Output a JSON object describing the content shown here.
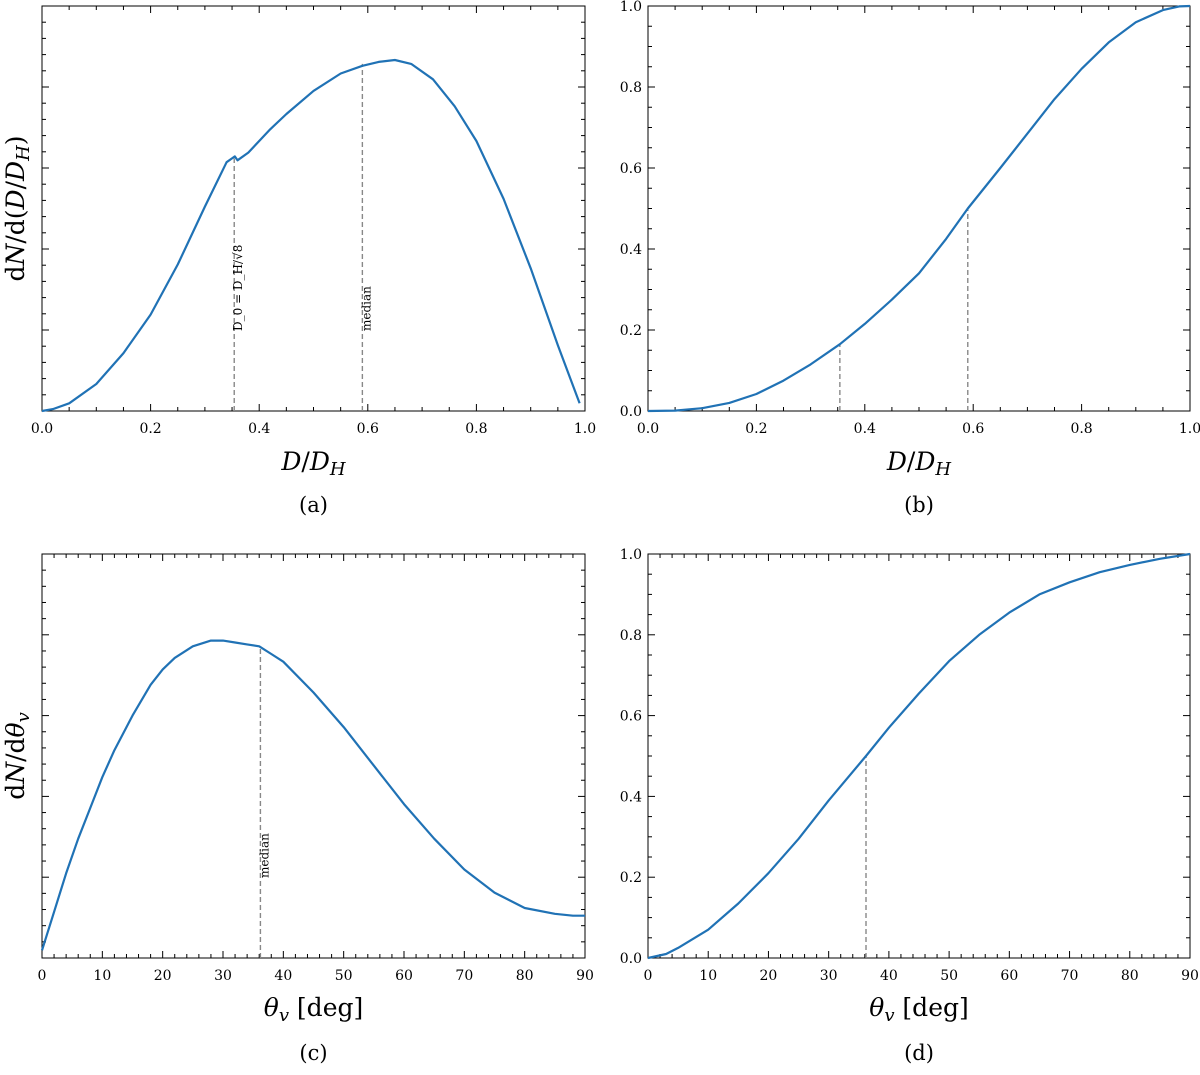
{
  "chart_data": [
    {
      "id": "a",
      "type": "line",
      "caption": "(a)",
      "xlabel": "D/D_H",
      "ylabel": "dN/d(D/D_H)",
      "xlim": [
        0,
        1
      ],
      "ylim": [
        0,
        1.05
      ],
      "xticks": [
        0.0,
        0.2,
        0.4,
        0.6,
        0.8,
        1.0
      ],
      "xtick_labels": [
        "0.0",
        "0.2",
        "0.4",
        "0.6",
        "0.8",
        "1.0"
      ],
      "yticks": [],
      "ytick_labels": [],
      "y_minor_ticks": true,
      "x": [
        0,
        0.02,
        0.05,
        0.1,
        0.15,
        0.2,
        0.25,
        0.3,
        0.34,
        0.35,
        0.355,
        0.36,
        0.38,
        0.4,
        0.42,
        0.45,
        0.5,
        0.55,
        0.59,
        0.62,
        0.65,
        0.68,
        0.72,
        0.76,
        0.8,
        0.85,
        0.9,
        0.95,
        0.99
      ],
      "y": [
        0,
        0.005,
        0.02,
        0.07,
        0.15,
        0.25,
        0.38,
        0.53,
        0.645,
        0.655,
        0.66,
        0.65,
        0.67,
        0.7,
        0.73,
        0.77,
        0.83,
        0.875,
        0.895,
        0.905,
        0.91,
        0.9,
        0.86,
        0.79,
        0.7,
        0.55,
        0.37,
        0.17,
        0.02
      ],
      "vlines": [
        {
          "x": 0.354,
          "y_top": 0.655,
          "label": "D_0 = D_H/√8"
        },
        {
          "x": 0.59,
          "y_top": 0.9,
          "label": "median"
        }
      ]
    },
    {
      "id": "b",
      "type": "line",
      "caption": "(b)",
      "xlabel": "D/D_H",
      "ylabel": "",
      "xlim": [
        0,
        1
      ],
      "ylim": [
        0,
        1
      ],
      "xticks": [
        0.0,
        0.2,
        0.4,
        0.6,
        0.8,
        1.0
      ],
      "xtick_labels": [
        "0.0",
        "0.2",
        "0.4",
        "0.6",
        "0.8",
        "1.0"
      ],
      "yticks": [
        0.0,
        0.2,
        0.4,
        0.6,
        0.8,
        1.0
      ],
      "ytick_labels": [
        "0.0",
        "0.2",
        "0.4",
        "0.6",
        "0.8",
        "1.0"
      ],
      "y_minor_ticks": false,
      "x": [
        0,
        0.05,
        0.1,
        0.15,
        0.2,
        0.25,
        0.3,
        0.354,
        0.4,
        0.45,
        0.5,
        0.55,
        0.59,
        0.65,
        0.7,
        0.75,
        0.8,
        0.85,
        0.9,
        0.95,
        0.98,
        1.0
      ],
      "y": [
        0,
        0.001,
        0.007,
        0.02,
        0.042,
        0.075,
        0.115,
        0.165,
        0.215,
        0.275,
        0.34,
        0.425,
        0.5,
        0.6,
        0.685,
        0.77,
        0.845,
        0.91,
        0.96,
        0.99,
        0.999,
        1.0
      ],
      "vlines": [
        {
          "x": 0.354,
          "y_top": 0.165,
          "label": ""
        },
        {
          "x": 0.59,
          "y_top": 0.5,
          "label": ""
        }
      ]
    },
    {
      "id": "c",
      "type": "line",
      "caption": "(c)",
      "xlabel": "θ_v [deg]",
      "ylabel": "dN/dθ_v",
      "xlim": [
        0,
        90
      ],
      "ylim": [
        0,
        1.05
      ],
      "xticks": [
        0,
        10,
        20,
        30,
        40,
        50,
        60,
        70,
        80,
        90
      ],
      "xtick_labels": [
        "0",
        "10",
        "20",
        "30",
        "40",
        "50",
        "60",
        "70",
        "80",
        "90"
      ],
      "yticks": [],
      "ytick_labels": [],
      "y_minor_ticks": true,
      "x": [
        0,
        2,
        4,
        6,
        8,
        10,
        12,
        15,
        18,
        20,
        22,
        25,
        28,
        30,
        32,
        34,
        36,
        38,
        40,
        45,
        50,
        55,
        60,
        65,
        70,
        75,
        80,
        85,
        88,
        90
      ],
      "y": [
        0.02,
        0.12,
        0.22,
        0.31,
        0.39,
        0.47,
        0.54,
        0.63,
        0.71,
        0.75,
        0.78,
        0.81,
        0.825,
        0.825,
        0.82,
        0.815,
        0.81,
        0.79,
        0.77,
        0.69,
        0.6,
        0.5,
        0.4,
        0.31,
        0.23,
        0.17,
        0.13,
        0.115,
        0.11,
        0.11
      ],
      "vlines": [
        {
          "x": 36.2,
          "y_top": 0.81,
          "label": "median"
        }
      ]
    },
    {
      "id": "d",
      "type": "line",
      "caption": "(d)",
      "xlabel": "θ_v [deg]",
      "ylabel": "",
      "xlim": [
        0,
        90
      ],
      "ylim": [
        0,
        1
      ],
      "xticks": [
        0,
        10,
        20,
        30,
        40,
        50,
        60,
        70,
        80,
        90
      ],
      "xtick_labels": [
        "0",
        "10",
        "20",
        "30",
        "40",
        "50",
        "60",
        "70",
        "80",
        "90"
      ],
      "yticks": [
        0.0,
        0.2,
        0.4,
        0.6,
        0.8,
        1.0
      ],
      "ytick_labels": [
        "0.0",
        "0.2",
        "0.4",
        "0.6",
        "0.8",
        "1.0"
      ],
      "y_minor_ticks": false,
      "x": [
        0,
        3,
        5,
        10,
        15,
        20,
        25,
        30,
        36.2,
        40,
        45,
        50,
        55,
        60,
        65,
        70,
        75,
        80,
        85,
        90
      ],
      "y": [
        0,
        0.01,
        0.025,
        0.07,
        0.135,
        0.21,
        0.295,
        0.39,
        0.5,
        0.57,
        0.655,
        0.735,
        0.8,
        0.855,
        0.9,
        0.93,
        0.955,
        0.973,
        0.988,
        1.0
      ],
      "vlines": [
        {
          "x": 36.2,
          "y_top": 0.5,
          "label": ""
        }
      ]
    }
  ]
}
